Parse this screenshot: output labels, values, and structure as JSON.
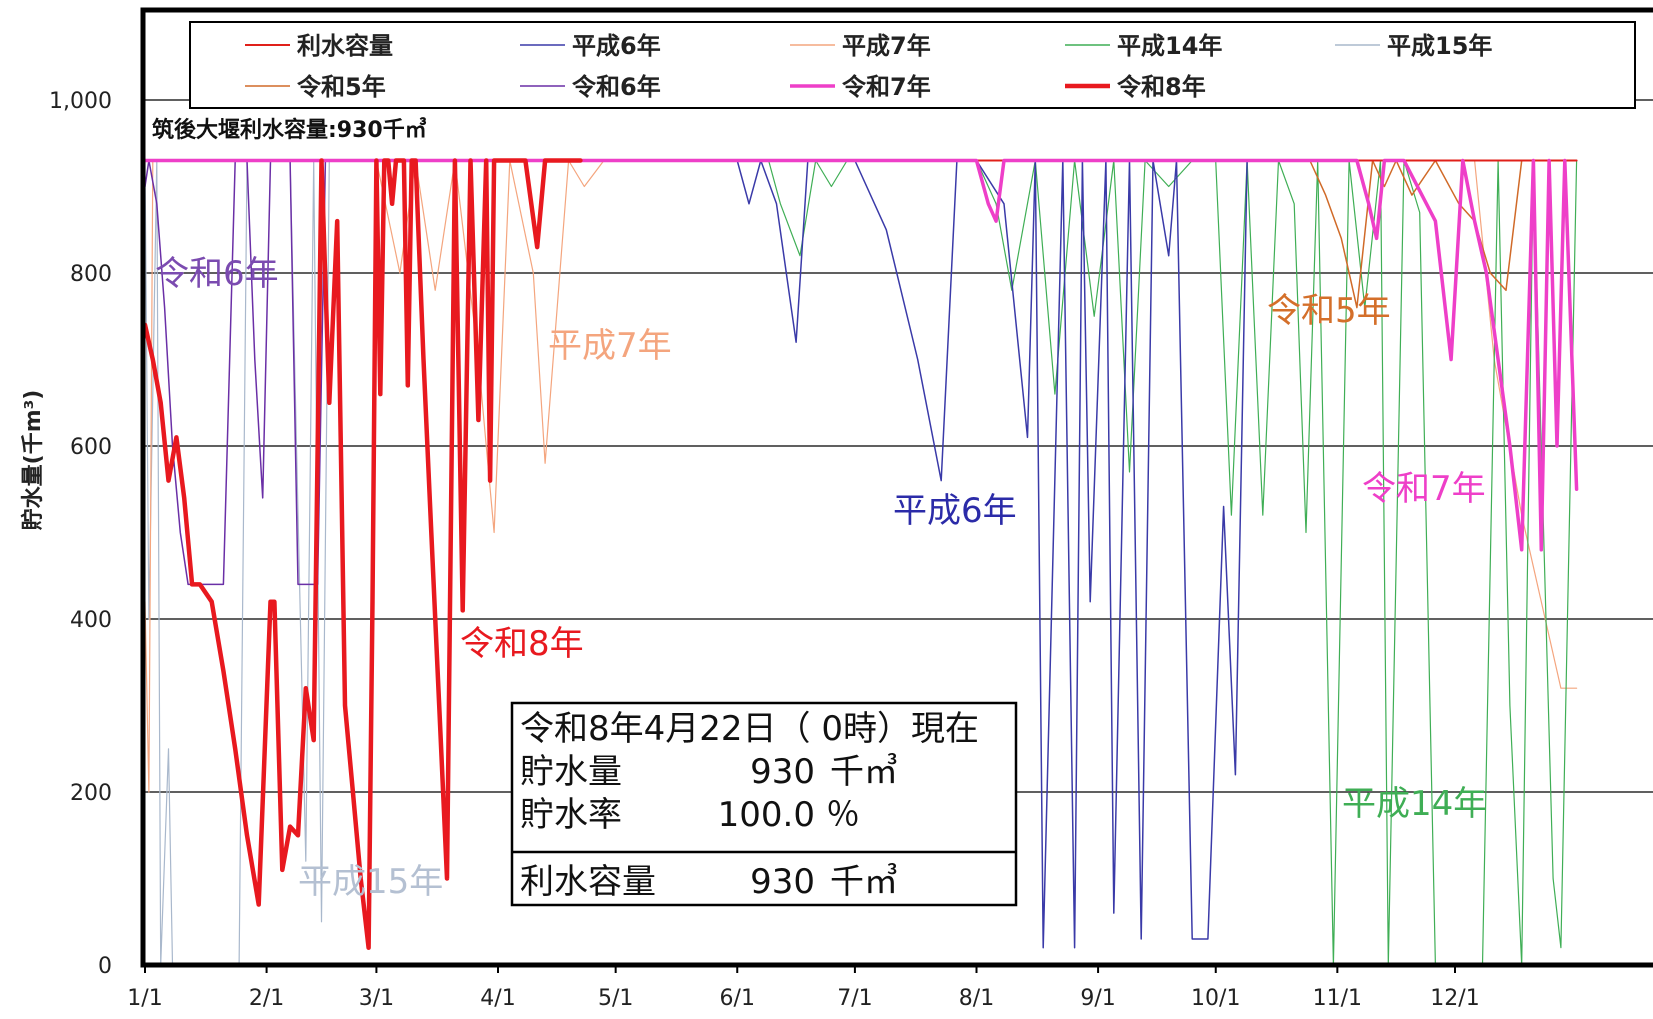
{
  "chart_data": {
    "type": "line",
    "title": "",
    "ylabel": "貯水量(千m³)",
    "ylim": [
      0,
      1100
    ],
    "yticks": [
      0,
      200,
      400,
      600,
      800,
      1000
    ],
    "ytick_labels": [
      "0",
      "200",
      "400",
      "600",
      "800",
      "1,000"
    ],
    "xlim": [
      1,
      366
    ],
    "xticks": [
      1,
      32,
      60,
      91,
      121,
      152,
      182,
      213,
      244,
      274,
      305,
      335
    ],
    "xtick_labels": [
      "1/1",
      "2/1",
      "3/1",
      "4/1",
      "5/1",
      "6/1",
      "7/1",
      "8/1",
      "9/1",
      "10/1",
      "11/1",
      "12/1"
    ],
    "grid": true,
    "legend_position": "top",
    "capacity_caption": "筑後大堰利水容量:930千㎥",
    "series": [
      {
        "name": "利水容量",
        "color": "#e0201a",
        "width": 2,
        "x": [
          1,
          366
        ],
        "y": [
          930,
          930
        ]
      },
      {
        "name": "平成6年",
        "color": "#3a3aa8",
        "width": 1.5,
        "x": [
          1,
          152,
          155,
          158,
          162,
          167,
          170,
          175,
          182,
          190,
          198,
          204,
          208,
          213,
          220,
          226,
          228,
          230,
          235,
          238,
          240,
          242,
          246,
          248,
          252,
          255,
          258,
          262,
          264,
          268,
          272,
          276,
          279,
          282,
          285,
          288,
          291,
          294,
          298,
          302,
          305
        ],
        "y": [
          930,
          930,
          880,
          930,
          880,
          720,
          930,
          930,
          930,
          850,
          700,
          560,
          930,
          930,
          880,
          610,
          930,
          20,
          930,
          20,
          930,
          420,
          930,
          60,
          930,
          30,
          930,
          820,
          930,
          30,
          30,
          530,
          220,
          930,
          930,
          930,
          930,
          930,
          930,
          930,
          930
        ]
      },
      {
        "name": "平成7年",
        "color": "#f4a57e",
        "width": 1.2,
        "x": [
          1,
          2,
          3,
          5,
          6,
          60,
          66,
          70,
          75,
          80,
          86,
          90,
          94,
          100,
          103,
          109,
          113,
          118,
          122,
          340,
          345,
          352,
          358,
          362,
          366
        ],
        "y": [
          420,
          200,
          930,
          930,
          930,
          930,
          800,
          930,
          780,
          930,
          700,
          500,
          930,
          800,
          580,
          930,
          900,
          930,
          930,
          930,
          700,
          520,
          400,
          320,
          320
        ]
      },
      {
        "name": "平成14年",
        "color": "#3fae55",
        "width": 1.2,
        "x": [
          1,
          160,
          163,
          168,
          172,
          176,
          180,
          213,
          218,
          222,
          228,
          233,
          238,
          243,
          248,
          252,
          256,
          262,
          268,
          274,
          278,
          282,
          286,
          290,
          294,
          297,
          300,
          304,
          308,
          312,
          316,
          318,
          322,
          326,
          330,
          334,
          338,
          342,
          346,
          349,
          352,
          355,
          360,
          362,
          366
        ],
        "y": [
          930,
          930,
          880,
          820,
          930,
          900,
          930,
          930,
          880,
          780,
          930,
          660,
          930,
          750,
          930,
          570,
          930,
          900,
          930,
          930,
          520,
          930,
          520,
          930,
          880,
          500,
          930,
          0,
          930,
          760,
          930,
          0,
          930,
          870,
          0,
          0,
          0,
          0,
          930,
          300,
          0,
          930,
          100,
          20,
          930
        ]
      },
      {
        "name": "平成15年",
        "color": "#a9b8cc",
        "width": 1.2,
        "x": [
          1,
          2,
          4,
          5,
          7,
          8,
          10,
          12,
          15,
          20,
          25,
          27,
          29,
          31,
          34,
          38,
          42,
          44,
          46,
          48,
          52,
          53,
          55,
          58,
          60,
          62,
          66,
          70,
          80,
          366
        ],
        "y": [
          930,
          400,
          930,
          0,
          250,
          0,
          0,
          0,
          0,
          0,
          0,
          930,
          930,
          930,
          930,
          930,
          120,
          930,
          50,
          930,
          930,
          930,
          930,
          930,
          930,
          930,
          930,
          930,
          930,
          930
        ]
      },
      {
        "name": "令和5年",
        "color": "#d06a28",
        "width": 1.5,
        "x": [
          1,
          298,
          302,
          306,
          310,
          314,
          317,
          320,
          324,
          330,
          336,
          340,
          344,
          348,
          352,
          366
        ],
        "y": [
          930,
          930,
          890,
          840,
          760,
          930,
          900,
          930,
          890,
          930,
          880,
          860,
          800,
          780,
          930,
          930
        ]
      },
      {
        "name": "令和6年",
        "color": "#6a2fa6",
        "width": 1.5,
        "x": [
          1,
          2,
          4,
          6,
          8,
          10,
          12,
          14,
          18,
          21,
          24,
          27,
          29,
          31,
          33,
          35,
          38,
          40,
          42,
          45,
          47,
          49,
          52,
          366
        ],
        "y": [
          900,
          930,
          880,
          760,
          600,
          500,
          440,
          440,
          440,
          440,
          930,
          930,
          700,
          540,
          930,
          930,
          930,
          440,
          440,
          440,
          930,
          930,
          930,
          930
        ]
      },
      {
        "name": "令和7年",
        "color": "#ee3fc8",
        "width": 3.5,
        "x": [
          1,
          213,
          216,
          218,
          220,
          222,
          310,
          313,
          315,
          317,
          319,
          322,
          330,
          334,
          337,
          340,
          343,
          346,
          349,
          352,
          355,
          357,
          359,
          361,
          363,
          366
        ],
        "y": [
          930,
          930,
          880,
          860,
          930,
          930,
          930,
          880,
          840,
          930,
          930,
          930,
          860,
          700,
          930,
          860,
          800,
          700,
          600,
          480,
          930,
          480,
          930,
          600,
          930,
          550
        ]
      },
      {
        "name": "令和8年",
        "color": "#e8191f",
        "width": 4.5,
        "x": [
          1,
          3,
          5,
          7,
          9,
          11,
          13,
          15,
          18,
          21,
          24,
          27,
          30,
          33,
          34,
          36,
          38,
          40,
          42,
          44,
          46,
          48,
          50,
          52,
          54,
          56,
          58,
          59,
          60,
          61,
          62,
          63,
          64,
          65,
          67,
          68,
          69,
          70,
          72,
          74,
          76,
          78,
          80,
          82,
          84,
          86,
          88,
          89,
          90,
          91,
          92,
          93,
          95,
          98,
          101,
          103,
          105,
          107,
          112
        ],
        "y": [
          740,
          700,
          650,
          560,
          610,
          540,
          440,
          440,
          420,
          340,
          250,
          150,
          70,
          420,
          420,
          110,
          160,
          150,
          320,
          260,
          930,
          650,
          860,
          300,
          200,
          100,
          20,
          420,
          930,
          660,
          930,
          930,
          880,
          930,
          930,
          670,
          930,
          930,
          700,
          500,
          300,
          100,
          930,
          410,
          930,
          630,
          930,
          560,
          930,
          930,
          930,
          930,
          930,
          930,
          830,
          930,
          930,
          930,
          930
        ]
      }
    ],
    "series_labels": [
      {
        "text": "令和6年",
        "color": "#7b4bb0"
      },
      {
        "text": "平成7年",
        "color": "#f4a57e"
      },
      {
        "text": "平成6年",
        "color": "#2b2ba8"
      },
      {
        "text": "令和5年",
        "color": "#d46f2a"
      },
      {
        "text": "令和7年",
        "color": "#ee3fc8"
      },
      {
        "text": "令和8年",
        "color": "#e8191f"
      },
      {
        "text": "平成15年",
        "color": "#b4c0d2"
      },
      {
        "text": "平成14年",
        "color": "#3fae55"
      }
    ],
    "info_box": {
      "date_line": "令和8年4月22日（ 0時）現在",
      "storage_label": "貯水量",
      "storage_value": "930",
      "storage_unit": "千㎥",
      "rate_label": "貯水率",
      "rate_value": "100.0",
      "rate_unit": "％",
      "capacity_label": "利水容量",
      "capacity_value": "930",
      "capacity_unit": "千㎥"
    }
  }
}
